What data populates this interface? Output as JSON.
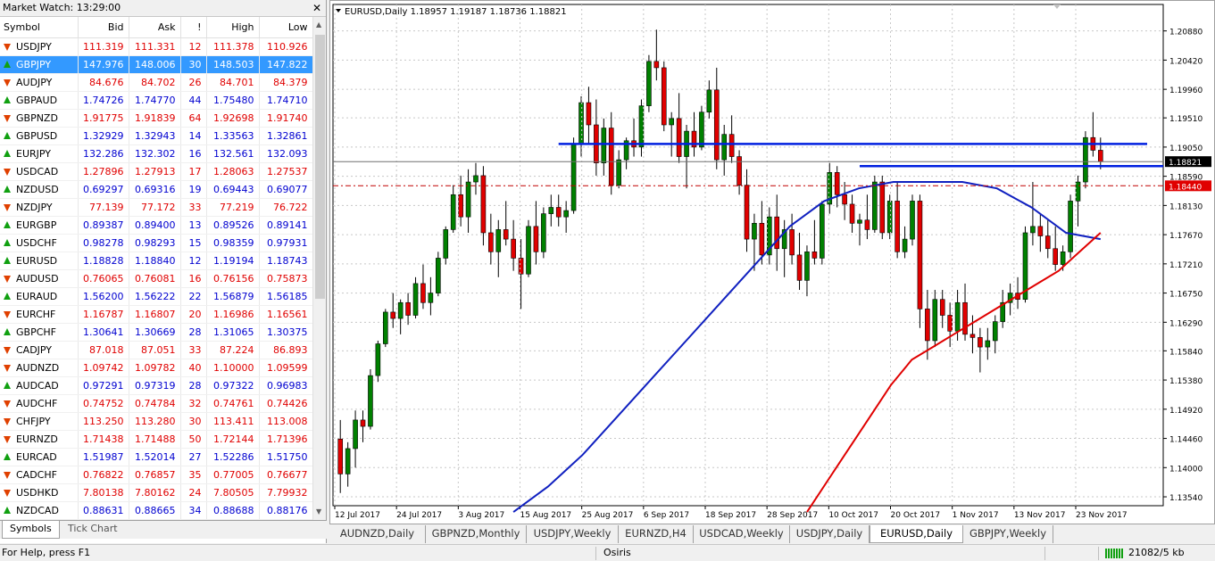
{
  "market_watch": {
    "title": "Market Watch: 13:29:00",
    "columns": [
      "Symbol",
      "Bid",
      "Ask",
      "!",
      "High",
      "Low"
    ],
    "rows": [
      {
        "symbol": "USDJPY",
        "bid": "111.319",
        "ask": "111.331",
        "spread": "12",
        "high": "111.378",
        "low": "110.926",
        "dir": "down"
      },
      {
        "symbol": "GBPJPY",
        "bid": "147.976",
        "ask": "148.006",
        "spread": "30",
        "high": "148.503",
        "low": "147.822",
        "dir": "up",
        "selected": true
      },
      {
        "symbol": "AUDJPY",
        "bid": "84.676",
        "ask": "84.702",
        "spread": "26",
        "high": "84.701",
        "low": "84.379",
        "dir": "down"
      },
      {
        "symbol": "GBPAUD",
        "bid": "1.74726",
        "ask": "1.74770",
        "spread": "44",
        "high": "1.75480",
        "low": "1.74710",
        "dir": "up"
      },
      {
        "symbol": "GBPNZD",
        "bid": "1.91775",
        "ask": "1.91839",
        "spread": "64",
        "high": "1.92698",
        "low": "1.91740",
        "dir": "down"
      },
      {
        "symbol": "GBPUSD",
        "bid": "1.32929",
        "ask": "1.32943",
        "spread": "14",
        "high": "1.33563",
        "low": "1.32861",
        "dir": "up"
      },
      {
        "symbol": "EURJPY",
        "bid": "132.286",
        "ask": "132.302",
        "spread": "16",
        "high": "132.561",
        "low": "132.093",
        "dir": "up"
      },
      {
        "symbol": "USDCAD",
        "bid": "1.27896",
        "ask": "1.27913",
        "spread": "17",
        "high": "1.28063",
        "low": "1.27537",
        "dir": "down"
      },
      {
        "symbol": "NZDUSD",
        "bid": "0.69297",
        "ask": "0.69316",
        "spread": "19",
        "high": "0.69443",
        "low": "0.69077",
        "dir": "up"
      },
      {
        "symbol": "NZDJPY",
        "bid": "77.139",
        "ask": "77.172",
        "spread": "33",
        "high": "77.219",
        "low": "76.722",
        "dir": "down"
      },
      {
        "symbol": "EURGBP",
        "bid": "0.89387",
        "ask": "0.89400",
        "spread": "13",
        "high": "0.89526",
        "low": "0.89141",
        "dir": "up"
      },
      {
        "symbol": "USDCHF",
        "bid": "0.98278",
        "ask": "0.98293",
        "spread": "15",
        "high": "0.98359",
        "low": "0.97931",
        "dir": "up"
      },
      {
        "symbol": "EURUSD",
        "bid": "1.18828",
        "ask": "1.18840",
        "spread": "12",
        "high": "1.19194",
        "low": "1.18743",
        "dir": "up"
      },
      {
        "symbol": "AUDUSD",
        "bid": "0.76065",
        "ask": "0.76081",
        "spread": "16",
        "high": "0.76156",
        "low": "0.75873",
        "dir": "down"
      },
      {
        "symbol": "EURAUD",
        "bid": "1.56200",
        "ask": "1.56222",
        "spread": "22",
        "high": "1.56879",
        "low": "1.56185",
        "dir": "up"
      },
      {
        "symbol": "EURCHF",
        "bid": "1.16787",
        "ask": "1.16807",
        "spread": "20",
        "high": "1.16986",
        "low": "1.16561",
        "dir": "down"
      },
      {
        "symbol": "GBPCHF",
        "bid": "1.30641",
        "ask": "1.30669",
        "spread": "28",
        "high": "1.31065",
        "low": "1.30375",
        "dir": "up"
      },
      {
        "symbol": "CADJPY",
        "bid": "87.018",
        "ask": "87.051",
        "spread": "33",
        "high": "87.224",
        "low": "86.893",
        "dir": "down"
      },
      {
        "symbol": "AUDNZD",
        "bid": "1.09742",
        "ask": "1.09782",
        "spread": "40",
        "high": "1.10000",
        "low": "1.09599",
        "dir": "down"
      },
      {
        "symbol": "AUDCAD",
        "bid": "0.97291",
        "ask": "0.97319",
        "spread": "28",
        "high": "0.97322",
        "low": "0.96983",
        "dir": "up"
      },
      {
        "symbol": "AUDCHF",
        "bid": "0.74752",
        "ask": "0.74784",
        "spread": "32",
        "high": "0.74761",
        "low": "0.74426",
        "dir": "down"
      },
      {
        "symbol": "CHFJPY",
        "bid": "113.250",
        "ask": "113.280",
        "spread": "30",
        "high": "113.411",
        "low": "113.008",
        "dir": "down"
      },
      {
        "symbol": "EURNZD",
        "bid": "1.71438",
        "ask": "1.71488",
        "spread": "50",
        "high": "1.72144",
        "low": "1.71396",
        "dir": "down"
      },
      {
        "symbol": "EURCAD",
        "bid": "1.51987",
        "ask": "1.52014",
        "spread": "27",
        "high": "1.52286",
        "low": "1.51750",
        "dir": "up"
      },
      {
        "symbol": "CADCHF",
        "bid": "0.76822",
        "ask": "0.76857",
        "spread": "35",
        "high": "0.77005",
        "low": "0.76677",
        "dir": "down"
      },
      {
        "symbol": "USDHKD",
        "bid": "7.80138",
        "ask": "7.80162",
        "spread": "24",
        "high": "7.80505",
        "low": "7.79932",
        "dir": "down"
      },
      {
        "symbol": "NZDCAD",
        "bid": "0.88631",
        "ask": "0.88665",
        "spread": "34",
        "high": "0.88688",
        "low": "0.88176",
        "dir": "up"
      }
    ],
    "tabs": [
      "Symbols",
      "Tick Chart"
    ],
    "colors": {
      "down": "#e00000",
      "up": "#0000d0",
      "selected": "#3399ff"
    }
  },
  "chart": {
    "header": "EURUSD,Daily  1.18957 1.19187 1.18736 1.18821",
    "tabs": [
      "AUDNZD,Daily",
      "GBPNZD,Monthly",
      "USDJPY,Weekly",
      "EURNZD,H4",
      "USDCAD,Weekly",
      "USDJPY,Daily",
      "EURUSD,Daily",
      "GBPJPY,Weekly"
    ],
    "active_tab": "EURUSD,Daily"
  },
  "chart_data": {
    "type": "candlestick",
    "symbol": "EURUSD",
    "timeframe": "Daily",
    "price_ticks": [
      "1.20880",
      "1.20420",
      "1.19960",
      "1.19510",
      "1.19050",
      "1.18590",
      "1.18130",
      "1.17670",
      "1.17210",
      "1.16750",
      "1.16290",
      "1.15840",
      "1.15380",
      "1.14920",
      "1.14460",
      "1.14000",
      "1.13540"
    ],
    "date_labels": [
      "12 Jul 2017",
      "24 Jul 2017",
      "3 Aug 2017",
      "15 Aug 2017",
      "25 Aug 2017",
      "6 Sep 2017",
      "18 Sep 2017",
      "28 Sep 2017",
      "10 Oct 2017",
      "20 Oct 2017",
      "1 Nov 2017",
      "13 Nov 2017",
      "23 Nov 2017"
    ],
    "current_bid": "1.18821",
    "ask_line": "1.18440",
    "candles": [
      {
        "o": 1.1445,
        "h": 1.1475,
        "l": 1.136,
        "c": 1.139
      },
      {
        "o": 1.139,
        "h": 1.144,
        "l": 1.137,
        "c": 1.143
      },
      {
        "o": 1.143,
        "h": 1.149,
        "l": 1.14,
        "c": 1.1475
      },
      {
        "o": 1.1475,
        "h": 1.149,
        "l": 1.144,
        "c": 1.1465
      },
      {
        "o": 1.1465,
        "h": 1.1555,
        "l": 1.146,
        "c": 1.1545
      },
      {
        "o": 1.1545,
        "h": 1.16,
        "l": 1.1535,
        "c": 1.1595
      },
      {
        "o": 1.1595,
        "h": 1.165,
        "l": 1.159,
        "c": 1.1645
      },
      {
        "o": 1.1645,
        "h": 1.1675,
        "l": 1.162,
        "c": 1.1635
      },
      {
        "o": 1.1635,
        "h": 1.1665,
        "l": 1.161,
        "c": 1.166
      },
      {
        "o": 1.166,
        "h": 1.1675,
        "l": 1.1625,
        "c": 1.164
      },
      {
        "o": 1.164,
        "h": 1.17,
        "l": 1.1635,
        "c": 1.169
      },
      {
        "o": 1.169,
        "h": 1.172,
        "l": 1.165,
        "c": 1.166
      },
      {
        "o": 1.166,
        "h": 1.17,
        "l": 1.164,
        "c": 1.1675
      },
      {
        "o": 1.1675,
        "h": 1.174,
        "l": 1.167,
        "c": 1.173
      },
      {
        "o": 1.173,
        "h": 1.178,
        "l": 1.172,
        "c": 1.1775
      },
      {
        "o": 1.1775,
        "h": 1.1845,
        "l": 1.177,
        "c": 1.183
      },
      {
        "o": 1.183,
        "h": 1.186,
        "l": 1.178,
        "c": 1.1795
      },
      {
        "o": 1.1795,
        "h": 1.187,
        "l": 1.177,
        "c": 1.185
      },
      {
        "o": 1.185,
        "h": 1.188,
        "l": 1.183,
        "c": 1.186
      },
      {
        "o": 1.186,
        "h": 1.1875,
        "l": 1.175,
        "c": 1.177
      },
      {
        "o": 1.177,
        "h": 1.18,
        "l": 1.172,
        "c": 1.174
      },
      {
        "o": 1.174,
        "h": 1.179,
        "l": 1.17,
        "c": 1.1775
      },
      {
        "o": 1.1775,
        "h": 1.182,
        "l": 1.175,
        "c": 1.176
      },
      {
        "o": 1.176,
        "h": 1.179,
        "l": 1.171,
        "c": 1.173
      },
      {
        "o": 1.173,
        "h": 1.176,
        "l": 1.165,
        "c": 1.1705
      },
      {
        "o": 1.1705,
        "h": 1.179,
        "l": 1.17,
        "c": 1.178
      },
      {
        "o": 1.178,
        "h": 1.182,
        "l": 1.172,
        "c": 1.174
      },
      {
        "o": 1.174,
        "h": 1.181,
        "l": 1.173,
        "c": 1.18
      },
      {
        "o": 1.18,
        "h": 1.183,
        "l": 1.178,
        "c": 1.181
      },
      {
        "o": 1.181,
        "h": 1.183,
        "l": 1.178,
        "c": 1.1795
      },
      {
        "o": 1.1795,
        "h": 1.182,
        "l": 1.177,
        "c": 1.1805
      },
      {
        "o": 1.1805,
        "h": 1.192,
        "l": 1.18,
        "c": 1.191
      },
      {
        "o": 1.191,
        "h": 1.1985,
        "l": 1.189,
        "c": 1.1975
      },
      {
        "o": 1.1975,
        "h": 1.2,
        "l": 1.191,
        "c": 1.194
      },
      {
        "o": 1.194,
        "h": 1.198,
        "l": 1.186,
        "c": 1.188
      },
      {
        "o": 1.188,
        "h": 1.195,
        "l": 1.186,
        "c": 1.1935
      },
      {
        "o": 1.1935,
        "h": 1.196,
        "l": 1.183,
        "c": 1.1845
      },
      {
        "o": 1.1845,
        "h": 1.19,
        "l": 1.184,
        "c": 1.1885
      },
      {
        "o": 1.1885,
        "h": 1.192,
        "l": 1.187,
        "c": 1.1915
      },
      {
        "o": 1.1915,
        "h": 1.195,
        "l": 1.189,
        "c": 1.1905
      },
      {
        "o": 1.1905,
        "h": 1.198,
        "l": 1.189,
        "c": 1.197
      },
      {
        "o": 1.197,
        "h": 1.205,
        "l": 1.196,
        "c": 1.204
      },
      {
        "o": 1.204,
        "h": 1.209,
        "l": 1.201,
        "c": 1.203
      },
      {
        "o": 1.203,
        "h": 1.204,
        "l": 1.193,
        "c": 1.194
      },
      {
        "o": 1.194,
        "h": 1.196,
        "l": 1.189,
        "c": 1.195
      },
      {
        "o": 1.195,
        "h": 1.199,
        "l": 1.188,
        "c": 1.189
      },
      {
        "o": 1.189,
        "h": 1.194,
        "l": 1.184,
        "c": 1.193
      },
      {
        "o": 1.193,
        "h": 1.196,
        "l": 1.189,
        "c": 1.1905
      },
      {
        "o": 1.1905,
        "h": 1.197,
        "l": 1.19,
        "c": 1.196
      },
      {
        "o": 1.196,
        "h": 1.201,
        "l": 1.195,
        "c": 1.1995
      },
      {
        "o": 1.1995,
        "h": 1.203,
        "l": 1.187,
        "c": 1.1885
      },
      {
        "o": 1.1885,
        "h": 1.194,
        "l": 1.186,
        "c": 1.1925
      },
      {
        "o": 1.1925,
        "h": 1.1955,
        "l": 1.188,
        "c": 1.189
      },
      {
        "o": 1.189,
        "h": 1.19,
        "l": 1.183,
        "c": 1.1845
      },
      {
        "o": 1.1845,
        "h": 1.187,
        "l": 1.174,
        "c": 1.176
      },
      {
        "o": 1.176,
        "h": 1.18,
        "l": 1.171,
        "c": 1.1785
      },
      {
        "o": 1.1785,
        "h": 1.182,
        "l": 1.172,
        "c": 1.1735
      },
      {
        "o": 1.1735,
        "h": 1.181,
        "l": 1.172,
        "c": 1.1795
      },
      {
        "o": 1.1795,
        "h": 1.183,
        "l": 1.171,
        "c": 1.1745
      },
      {
        "o": 1.1745,
        "h": 1.179,
        "l": 1.17,
        "c": 1.1775
      },
      {
        "o": 1.1775,
        "h": 1.18,
        "l": 1.172,
        "c": 1.1735
      },
      {
        "o": 1.1735,
        "h": 1.177,
        "l": 1.168,
        "c": 1.1695
      },
      {
        "o": 1.1695,
        "h": 1.175,
        "l": 1.167,
        "c": 1.174
      },
      {
        "o": 1.174,
        "h": 1.179,
        "l": 1.172,
        "c": 1.173
      },
      {
        "o": 1.173,
        "h": 1.182,
        "l": 1.172,
        "c": 1.1815
      },
      {
        "o": 1.1815,
        "h": 1.188,
        "l": 1.18,
        "c": 1.1865
      },
      {
        "o": 1.1865,
        "h": 1.1875,
        "l": 1.181,
        "c": 1.183
      },
      {
        "o": 1.183,
        "h": 1.185,
        "l": 1.179,
        "c": 1.1815
      },
      {
        "o": 1.1815,
        "h": 1.183,
        "l": 1.177,
        "c": 1.1785
      },
      {
        "o": 1.1785,
        "h": 1.18,
        "l": 1.175,
        "c": 1.179
      },
      {
        "o": 1.179,
        "h": 1.183,
        "l": 1.176,
        "c": 1.1775
      },
      {
        "o": 1.1775,
        "h": 1.186,
        "l": 1.177,
        "c": 1.185
      },
      {
        "o": 1.185,
        "h": 1.186,
        "l": 1.176,
        "c": 1.177
      },
      {
        "o": 1.177,
        "h": 1.183,
        "l": 1.176,
        "c": 1.182
      },
      {
        "o": 1.182,
        "h": 1.185,
        "l": 1.173,
        "c": 1.174
      },
      {
        "o": 1.174,
        "h": 1.178,
        "l": 1.173,
        "c": 1.176
      },
      {
        "o": 1.176,
        "h": 1.183,
        "l": 1.175,
        "c": 1.182
      },
      {
        "o": 1.182,
        "h": 1.183,
        "l": 1.162,
        "c": 1.165
      },
      {
        "o": 1.165,
        "h": 1.168,
        "l": 1.157,
        "c": 1.16
      },
      {
        "o": 1.16,
        "h": 1.168,
        "l": 1.159,
        "c": 1.1665
      },
      {
        "o": 1.1665,
        "h": 1.168,
        "l": 1.162,
        "c": 1.164
      },
      {
        "o": 1.164,
        "h": 1.166,
        "l": 1.159,
        "c": 1.1615
      },
      {
        "o": 1.1615,
        "h": 1.168,
        "l": 1.16,
        "c": 1.166
      },
      {
        "o": 1.166,
        "h": 1.169,
        "l": 1.16,
        "c": 1.161
      },
      {
        "o": 1.161,
        "h": 1.164,
        "l": 1.158,
        "c": 1.1605
      },
      {
        "o": 1.1605,
        "h": 1.162,
        "l": 1.155,
        "c": 1.159
      },
      {
        "o": 1.159,
        "h": 1.162,
        "l": 1.157,
        "c": 1.16
      },
      {
        "o": 1.16,
        "h": 1.164,
        "l": 1.158,
        "c": 1.163
      },
      {
        "o": 1.163,
        "h": 1.168,
        "l": 1.162,
        "c": 1.166
      },
      {
        "o": 1.166,
        "h": 1.169,
        "l": 1.164,
        "c": 1.1675
      },
      {
        "o": 1.1675,
        "h": 1.17,
        "l": 1.165,
        "c": 1.1665
      },
      {
        "o": 1.1665,
        "h": 1.178,
        "l": 1.166,
        "c": 1.177
      },
      {
        "o": 1.177,
        "h": 1.185,
        "l": 1.175,
        "c": 1.178
      },
      {
        "o": 1.178,
        "h": 1.18,
        "l": 1.174,
        "c": 1.1765
      },
      {
        "o": 1.1765,
        "h": 1.179,
        "l": 1.173,
        "c": 1.1745
      },
      {
        "o": 1.1745,
        "h": 1.178,
        "l": 1.171,
        "c": 1.172
      },
      {
        "o": 1.172,
        "h": 1.175,
        "l": 1.171,
        "c": 1.174
      },
      {
        "o": 1.174,
        "h": 1.183,
        "l": 1.173,
        "c": 1.182
      },
      {
        "o": 1.182,
        "h": 1.186,
        "l": 1.178,
        "c": 1.185
      },
      {
        "o": 1.185,
        "h": 1.193,
        "l": 1.184,
        "c": 1.192
      },
      {
        "o": 1.192,
        "h": 1.196,
        "l": 1.189,
        "c": 1.19
      },
      {
        "o": 1.19,
        "h": 1.192,
        "l": 1.187,
        "c": 1.1882
      }
    ],
    "ma_fast": [
      1.133,
      1.137,
      1.142,
      1.148,
      1.154,
      1.16,
      1.166,
      1.172,
      1.178,
      1.182,
      1.184,
      1.185,
      1.185,
      1.185,
      1.184,
      1.181,
      1.177,
      1.176
    ],
    "ma_slow": [
      1.133,
      1.138,
      1.143,
      1.148,
      1.153,
      1.157,
      1.159,
      1.161,
      1.163,
      1.165,
      1.167,
      1.169,
      1.171,
      1.174,
      1.177
    ],
    "horizontal_lines": [
      1.191,
      1.1875
    ]
  },
  "status": {
    "help": "For Help, press F1",
    "profile": "Osiris",
    "traffic": "21082/5 kb"
  }
}
